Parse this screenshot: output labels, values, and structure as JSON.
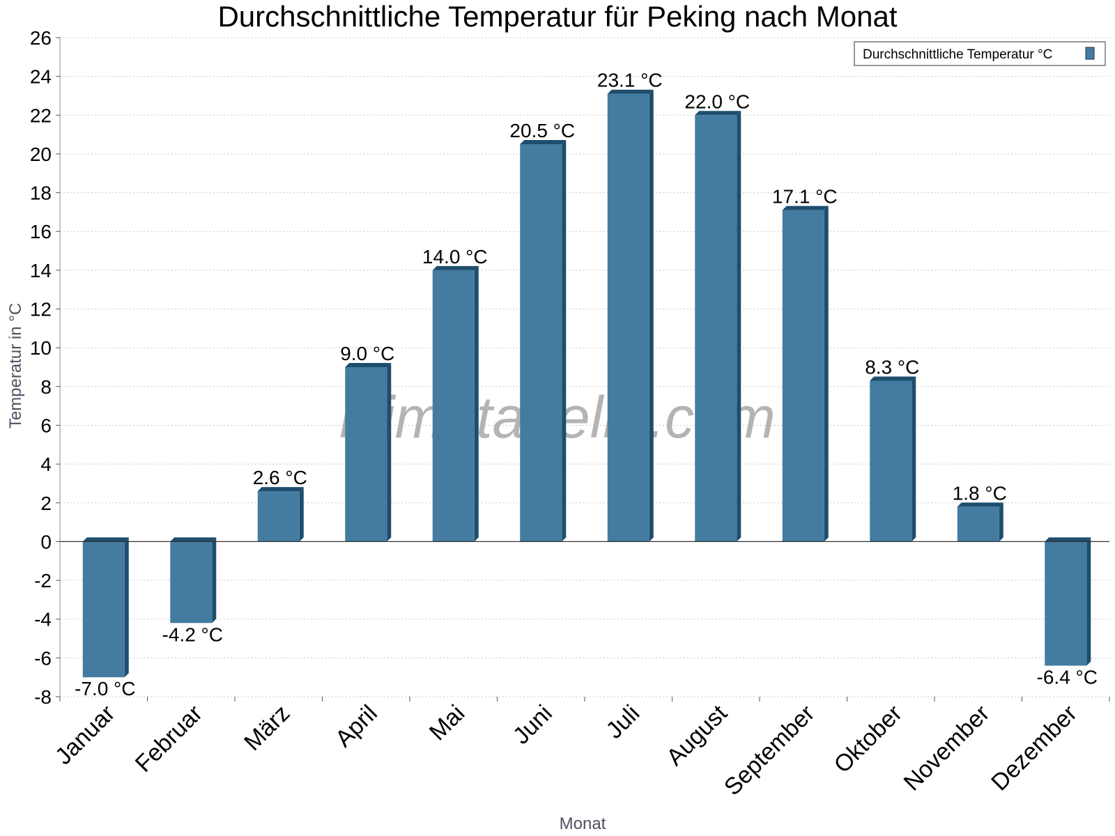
{
  "chart_data": {
    "type": "bar",
    "title": "Durchschnittliche Temperatur für Peking nach Monat",
    "xlabel": "Monat",
    "ylabel": "Temperatur in °C",
    "ylim": [
      -8,
      26
    ],
    "ytick_step": 2,
    "grid": true,
    "legend_position": "top-right",
    "watermark": "klimatabelle.com",
    "unit": "°C",
    "categories": [
      "Januar",
      "Februar",
      "März",
      "April",
      "Mai",
      "Juni",
      "Juli",
      "August",
      "September",
      "Oktober",
      "November",
      "Dezember"
    ],
    "series": [
      {
        "name": "Durchschnittliche Temperatur °C",
        "color": "#447ba0",
        "values": [
          -7.0,
          -4.2,
          2.6,
          9.0,
          14.0,
          20.5,
          23.1,
          22.0,
          17.1,
          8.3,
          1.8,
          -6.4
        ]
      }
    ]
  }
}
